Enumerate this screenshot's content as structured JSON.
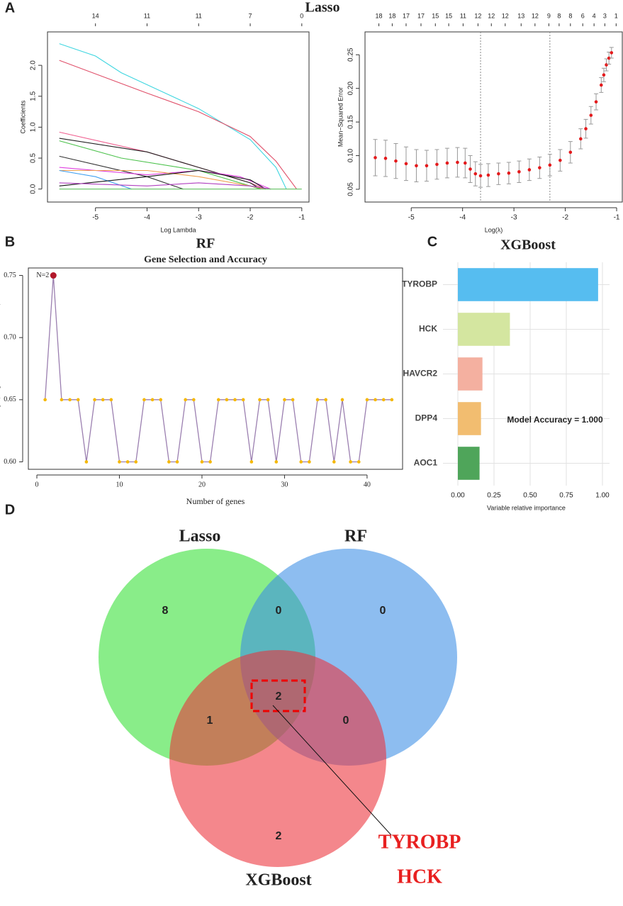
{
  "chart_data": [
    {
      "type": "line",
      "panel_label": "A",
      "title": "Lasso",
      "xlabel": "Log Lambda",
      "ylabel": "Coefficients",
      "xlim": [
        -5.93,
        -0.86
      ],
      "ylim": [
        -0.21,
        2.54
      ],
      "xticks": [
        -5,
        -4,
        -3,
        -2,
        -1
      ],
      "yticks": [
        {
          "value": 0,
          "label": "0.0"
        },
        0.5,
        {
          "value": 1,
          "label": "1.0"
        },
        1.5,
        {
          "value": 2,
          "label": "2.0"
        }
      ],
      "top_ticks": [
        {
          "value": -5,
          "label": "14"
        },
        {
          "value": -4,
          "label": "11"
        },
        {
          "value": -3,
          "label": "11"
        },
        {
          "value": -2,
          "label": "7"
        },
        {
          "value": -1,
          "label": "0"
        }
      ],
      "series": [
        {
          "color": "#3fd6e0",
          "x": [
            -5.7,
            -5,
            -4.5,
            -3,
            -2,
            -1.5,
            -1.3
          ],
          "values": [
            2.35,
            2.15,
            1.88,
            1.3,
            0.8,
            0.35,
            0
          ]
        },
        {
          "color": "#e0506a",
          "x": [
            -5.7,
            -4,
            -3,
            -2,
            -1.5,
            -1.1
          ],
          "values": [
            2.08,
            1.55,
            1.25,
            0.85,
            0.45,
            0
          ]
        },
        {
          "color": "#f06090",
          "x": [
            -5.7,
            -4,
            -3,
            -2,
            -1.7
          ],
          "values": [
            0.92,
            0.6,
            0.35,
            0.1,
            0
          ]
        },
        {
          "color": "#222222",
          "x": [
            -5.7,
            -4,
            -3,
            -2,
            -1.8
          ],
          "values": [
            0.82,
            0.6,
            0.35,
            0.1,
            0
          ]
        },
        {
          "color": "#4cc24c",
          "x": [
            -5.7,
            -4.5,
            -3,
            -2,
            -1.8
          ],
          "values": [
            0.78,
            0.5,
            0.3,
            0.05,
            0
          ]
        },
        {
          "color": "#333333",
          "x": [
            -5.7,
            -4,
            -3.3
          ],
          "values": [
            0.53,
            0.2,
            0
          ]
        },
        {
          "color": "#e040e0",
          "x": [
            -5.7,
            -4,
            -3,
            -2.2,
            -1.6
          ],
          "values": [
            0.35,
            0.23,
            0.3,
            0.2,
            0
          ]
        },
        {
          "color": "#f0a050",
          "x": [
            -5.7,
            -4,
            -3,
            -2,
            -1.7
          ],
          "values": [
            0.3,
            0.3,
            0.2,
            0.05,
            0
          ]
        },
        {
          "color": "#40a0f0",
          "x": [
            -5.7,
            -5,
            -4.3
          ],
          "values": [
            0.3,
            0.2,
            0
          ]
        },
        {
          "color": "#111111",
          "x": [
            -5.7,
            -4,
            -3,
            -2,
            -1.7
          ],
          "values": [
            0.05,
            0.2,
            0.3,
            0.15,
            0
          ]
        },
        {
          "color": "#b040c0",
          "x": [
            -5.7,
            -4,
            -3,
            -2,
            -1.6
          ],
          "values": [
            0.1,
            0.05,
            0.1,
            0.05,
            0
          ]
        },
        {
          "color": "#60c060",
          "x": [
            -5.7,
            -1
          ],
          "values": [
            0,
            0
          ]
        }
      ]
    },
    {
      "type": "scatter",
      "xlabel": "Log(λ)",
      "ylabel": "Mean−Squared Error",
      "xlim": [
        -5.9,
        -0.89
      ],
      "ylim": [
        0.031,
        0.284
      ],
      "xticks": [
        -5,
        -4,
        -3,
        -2,
        -1
      ],
      "yticks": [
        0.05,
        {
          "value": 0.1,
          "label": "0.10"
        },
        0.15,
        {
          "value": 0.2,
          "label": "0.20"
        },
        0.25
      ],
      "top_ticks": [
        {
          "value": -5.63,
          "label": "18"
        },
        {
          "value": -5.37,
          "label": "18"
        },
        {
          "value": -5.1,
          "label": "17"
        },
        {
          "value": -4.81,
          "label": "17"
        },
        {
          "value": -4.53,
          "label": "15"
        },
        {
          "value": -4.27,
          "label": "15"
        },
        {
          "value": -3.99,
          "label": "11"
        },
        {
          "value": -3.7,
          "label": "12"
        },
        {
          "value": -3.44,
          "label": "12"
        },
        {
          "value": -3.17,
          "label": "12"
        },
        {
          "value": -2.86,
          "label": "13"
        },
        {
          "value": -2.59,
          "label": "12"
        },
        {
          "value": -2.32,
          "label": "9"
        },
        {
          "value": -2.12,
          "label": "8"
        },
        {
          "value": -1.9,
          "label": "8"
        },
        {
          "value": -1.66,
          "label": "6"
        },
        {
          "value": -1.44,
          "label": "4"
        },
        {
          "value": -1.23,
          "label": "3"
        },
        {
          "value": -1.01,
          "label": "1"
        }
      ],
      "vlines": [
        -3.65,
        -2.3
      ],
      "color": "#e41a1c",
      "error_color": "#999999",
      "x": [
        -5.7,
        -5.5,
        -5.3,
        -5.1,
        -4.9,
        -4.7,
        -4.5,
        -4.3,
        -4.1,
        -3.95,
        -3.85,
        -3.75,
        -3.65,
        -3.5,
        -3.3,
        -3.1,
        -2.9,
        -2.7,
        -2.5,
        -2.3,
        -2.1,
        -1.9,
        -1.7,
        -1.6,
        -1.5,
        -1.4,
        -1.3,
        -1.25,
        -1.2,
        -1.15,
        -1.1
      ],
      "values": [
        0.097,
        0.096,
        0.092,
        0.088,
        0.085,
        0.085,
        0.087,
        0.089,
        0.09,
        0.089,
        0.08,
        0.073,
        0.07,
        0.071,
        0.073,
        0.074,
        0.076,
        0.079,
        0.082,
        0.086,
        0.093,
        0.105,
        0.125,
        0.14,
        0.16,
        0.18,
        0.205,
        0.22,
        0.235,
        0.245,
        0.253
      ],
      "errors": [
        0.027,
        0.027,
        0.026,
        0.025,
        0.024,
        0.023,
        0.022,
        0.022,
        0.022,
        0.022,
        0.02,
        0.018,
        0.017,
        0.017,
        0.016,
        0.016,
        0.016,
        0.016,
        0.016,
        0.016,
        0.016,
        0.016,
        0.015,
        0.014,
        0.013,
        0.012,
        0.011,
        0.01,
        0.009,
        0.009,
        0.008
      ]
    },
    {
      "type": "line",
      "panel_label": "B",
      "title": "RF",
      "subtitle": "Gene Selection and Accuracy",
      "xlabel": "Number of genes",
      "ylabel": "Accuracy (Repeated Cross−Validation)",
      "xlim": [
        -1.03,
        44.3
      ],
      "ylim": [
        0.594,
        0.756
      ],
      "xticks": [
        0,
        10,
        20,
        30,
        40
      ],
      "yticks": [
        {
          "value": 0.6,
          "label": "0.60"
        },
        0.65,
        {
          "value": 0.7,
          "label": "0.70"
        },
        0.75
      ],
      "annotation": "N=2",
      "color": "#9b7fb0",
      "marker_color": "#f5b800",
      "highlight_color": "#b2182b",
      "x": [
        1,
        2,
        3,
        4,
        5,
        6,
        7,
        8,
        9,
        10,
        11,
        12,
        13,
        14,
        15,
        16,
        17,
        18,
        19,
        20,
        21,
        22,
        23,
        24,
        25,
        26,
        27,
        28,
        29,
        30,
        31,
        32,
        33,
        34,
        35,
        36,
        37,
        38,
        39,
        40,
        41,
        42,
        43
      ],
      "values": [
        0.65,
        0.75,
        0.65,
        0.65,
        0.65,
        0.6,
        0.65,
        0.65,
        0.65,
        0.6,
        0.6,
        0.6,
        0.65,
        0.65,
        0.65,
        0.6,
        0.6,
        0.65,
        0.65,
        0.6,
        0.6,
        0.65,
        0.65,
        0.65,
        0.65,
        0.6,
        0.65,
        0.65,
        0.6,
        0.65,
        0.65,
        0.6,
        0.6,
        0.65,
        0.65,
        0.6,
        0.65,
        0.6,
        0.6,
        0.65,
        0.65,
        0.65,
        0.65
      ]
    },
    {
      "type": "barh",
      "panel_label": "C",
      "title": "XGBoost",
      "xlabel": "Variable relative importance",
      "categories": [
        "TYROBP",
        "HCK",
        "HAVCR2",
        "DPP4",
        "AOC1"
      ],
      "values": [
        0.97,
        0.36,
        0.17,
        0.16,
        0.15
      ],
      "colors": [
        "#56bdf0",
        "#d4e6a0",
        "#f4b0a0",
        "#f2bd70",
        "#4fa55a"
      ],
      "xlim": [
        -0.103,
        1.049
      ],
      "xticks": [
        {
          "value": 0,
          "label": "0.00"
        },
        0.25,
        {
          "value": 0.5,
          "label": "0.50"
        },
        0.75,
        {
          "value": 1,
          "label": "1.00"
        }
      ],
      "grid": true,
      "annotation": "Model Accuracy = 1.000"
    },
    {
      "type": "venn",
      "panel_label": "D",
      "sets": [
        {
          "name": "Lasso",
          "color": "#33e033"
        },
        {
          "name": "RF",
          "color": "#3a8ee6"
        },
        {
          "name": "XGBoost",
          "color": "#ec3038"
        }
      ],
      "values": [
        8,
        0,
        0,
        2,
        1,
        0,
        2
      ],
      "genes": [
        "TYROBP",
        "HCK"
      ]
    }
  ]
}
